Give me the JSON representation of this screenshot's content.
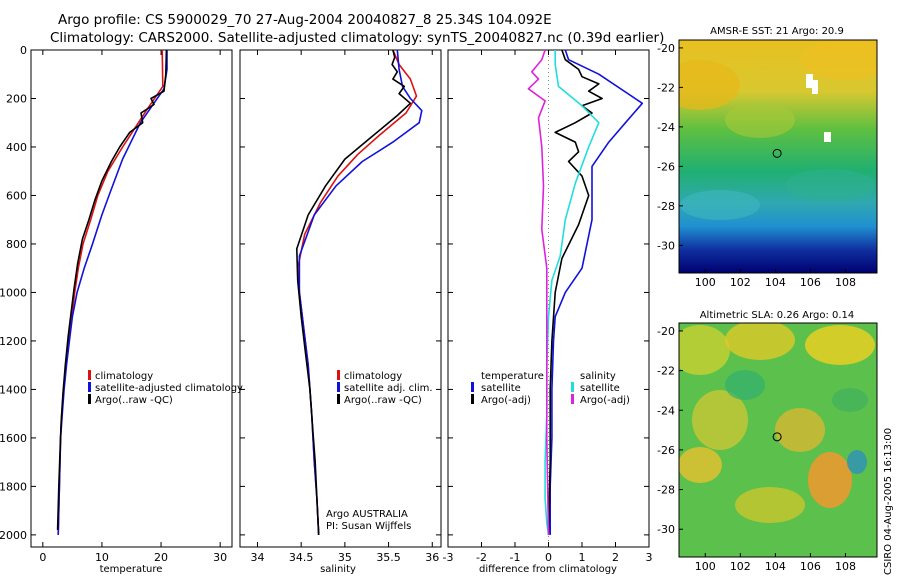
{
  "header": {
    "title_line1": "Argo profile: CS 5900029_70 27-Aug-2004 20040827_8 25.34S 104.092E",
    "title_line2": "Climatology: CARS2000. Satellite-adjusted climatology: synTS_20040827.nc (0.39d earlier)"
  },
  "credit": "CSIRO 04-Aug-2005 16:13:00",
  "colors": {
    "climatology": "#dd1111",
    "satellite": "#1111dd",
    "argo": "#000000",
    "sat_salinity": "#22dddd",
    "argo_salinity": "#dd22dd",
    "zero_line": "#888888"
  },
  "chart_data": [
    {
      "type": "line",
      "xlabel": "temperature",
      "ylabel": "",
      "xlim": [
        -2,
        32
      ],
      "ylim": [
        2050,
        0
      ],
      "xticks": [
        "0",
        "10",
        "20",
        "30"
      ],
      "yticks": [
        "0",
        "200",
        "400",
        "600",
        "800",
        "1000",
        "1200",
        "1400",
        "1600",
        "1800",
        "2000"
      ],
      "legend": {
        "placement": "lower-right",
        "entries": [
          "climatology",
          "satellite-adjusted climatology",
          "Argo(..raw -QC)"
        ]
      },
      "series": [
        {
          "name": "climatology",
          "color": "#dd1111",
          "x": [
            20.2,
            20.3,
            17.5,
            13.5,
            11.0,
            9.3,
            8.1,
            6.8,
            6.0,
            5.4,
            4.9,
            4.4,
            3.9,
            3.5,
            3.2,
            3.0,
            2.8,
            2.6
          ],
          "y": [
            0,
            150,
            250,
            400,
            500,
            600,
            700,
            800,
            900,
            1000,
            1100,
            1200,
            1300,
            1400,
            1500,
            1600,
            1800,
            2000
          ]
        },
        {
          "name": "satellite-adjusted climatology",
          "color": "#1111dd",
          "x": [
            21.0,
            21.0,
            20.5,
            16.5,
            13.5,
            11.5,
            10.0,
            8.4,
            7.0,
            5.8,
            5.0,
            4.5,
            4.0,
            3.6,
            3.3,
            3.0,
            2.8,
            2.6
          ],
          "y": [
            0,
            80,
            160,
            300,
            450,
            580,
            680,
            800,
            900,
            1000,
            1100,
            1200,
            1300,
            1400,
            1500,
            1600,
            1800,
            2000
          ]
        },
        {
          "name": "Argo(..raw -QC)",
          "color": "#000000",
          "x": [
            20.9,
            20.8,
            20.5,
            18.3,
            18.8,
            16.6,
            16.9,
            14.7,
            13.0,
            11.6,
            10.0,
            8.8,
            7.8,
            6.7,
            5.9,
            5.3,
            4.8,
            4.3,
            3.8,
            3.4,
            3.1,
            2.9,
            2.7,
            2.5
          ],
          "y": [
            0,
            100,
            170,
            200,
            225,
            260,
            300,
            340,
            400,
            460,
            540,
            620,
            700,
            780,
            880,
            980,
            1080,
            1180,
            1300,
            1420,
            1540,
            1660,
            1800,
            1980
          ]
        }
      ]
    },
    {
      "type": "line",
      "xlabel": "salinity",
      "ylabel": "",
      "xlim": [
        33.8,
        36.1
      ],
      "ylim": [
        2050,
        0
      ],
      "xticks": [
        "34",
        "34.5",
        "35",
        "35.5",
        "36"
      ],
      "annotations": [
        "Argo AUSTRALIA",
        "PI: Susan Wijffels"
      ],
      "legend": {
        "placement": "lower-right",
        "entries": [
          "climatology",
          "satellite adj. clim.",
          "Argo(..raw -QC)"
        ]
      },
      "series": [
        {
          "name": "climatology",
          "color": "#dd1111",
          "x": [
            35.55,
            35.62,
            35.75,
            35.82,
            35.7,
            35.4,
            35.15,
            34.92,
            34.72,
            34.54,
            34.46,
            34.48,
            34.53,
            34.58,
            34.62,
            34.65,
            34.68,
            34.7
          ],
          "y": [
            0,
            60,
            120,
            190,
            260,
            350,
            430,
            520,
            630,
            760,
            900,
            1000,
            1150,
            1300,
            1500,
            1700,
            1850,
            2000
          ]
        },
        {
          "name": "satellite adj. clim.",
          "color": "#1111dd",
          "x": [
            35.6,
            35.62,
            35.66,
            35.75,
            35.88,
            35.85,
            35.55,
            35.2,
            34.9,
            34.65,
            34.48,
            34.48,
            34.53,
            34.58,
            34.62,
            34.65,
            34.68,
            34.7
          ],
          "y": [
            0,
            80,
            150,
            200,
            250,
            300,
            380,
            460,
            560,
            680,
            850,
            1000,
            1150,
            1300,
            1500,
            1700,
            1850,
            2000
          ]
        },
        {
          "name": "Argo(..raw -QC)",
          "color": "#000000",
          "x": [
            35.55,
            35.57,
            35.54,
            35.6,
            35.55,
            35.68,
            35.62,
            35.75,
            35.6,
            35.3,
            35.0,
            34.78,
            34.58,
            34.45,
            34.46,
            34.5,
            34.55,
            34.6,
            34.63,
            34.66,
            34.68,
            34.7
          ],
          "y": [
            0,
            30,
            60,
            90,
            120,
            150,
            180,
            220,
            270,
            360,
            450,
            560,
            680,
            820,
            950,
            1100,
            1250,
            1400,
            1550,
            1700,
            1850,
            2000
          ]
        }
      ]
    },
    {
      "type": "line",
      "xlabel": "difference from climatology",
      "ylabel": "",
      "xlim": [
        -3,
        3
      ],
      "ylim": [
        2050,
        0
      ],
      "xticks": [
        "-3",
        "-2",
        "-1",
        "0",
        "1",
        "2",
        "3"
      ],
      "legend": {
        "placement": "lower-center",
        "groups": [
          {
            "header": "temperature",
            "entries": [
              "satellite",
              "Argo(-adj)"
            ]
          },
          {
            "header": "salinity",
            "entries": [
              "satellite",
              "Argo(-adj)"
            ]
          }
        ]
      },
      "series": [
        {
          "name": "temperature satellite",
          "color": "#1111dd",
          "x": [
            0.5,
            0.6,
            1.5,
            2.8,
            2.3,
            1.8,
            1.3,
            1.3,
            1.3,
            1.0,
            0.5,
            0.2,
            0.15,
            0.1,
            0.1,
            0.05,
            0.05
          ],
          "y": [
            0,
            40,
            100,
            220,
            300,
            380,
            480,
            600,
            700,
            900,
            1000,
            1100,
            1200,
            1400,
            1600,
            1800,
            2000
          ]
        },
        {
          "name": "temperature Argo(-adj)",
          "color": "#000000",
          "x": [
            0.4,
            0.5,
            0.9,
            1.0,
            1.5,
            1.2,
            1.6,
            1.0,
            1.3,
            0.8,
            0.2,
            0.8,
            0.9,
            0.6,
            1.0,
            1.2,
            0.9,
            0.4,
            0.2,
            0.1,
            0.05,
            0.05,
            0.0
          ],
          "y": [
            0,
            40,
            80,
            110,
            140,
            170,
            200,
            230,
            260,
            300,
            340,
            380,
            420,
            460,
            520,
            600,
            720,
            860,
            1000,
            1200,
            1400,
            1700,
            2000
          ]
        },
        {
          "name": "salinity satellite",
          "color": "#22dddd",
          "x": [
            0.2,
            0.2,
            0.3,
            1.0,
            1.5,
            1.2,
            0.8,
            0.5,
            0.35,
            0.1,
            0.0,
            -0.05,
            -0.05,
            -0.1,
            -0.1,
            -0.05,
            0.0
          ],
          "y": [
            0,
            60,
            150,
            230,
            300,
            400,
            550,
            700,
            850,
            950,
            1100,
            1300,
            1500,
            1700,
            1850,
            1950,
            2000
          ]
        },
        {
          "name": "salinity Argo(-adj)",
          "color": "#dd22dd",
          "x": [
            -0.1,
            -0.2,
            -0.5,
            -0.3,
            -0.6,
            -0.1,
            -0.3,
            -0.2,
            -0.15,
            -0.2,
            -0.05,
            -0.05,
            -0.05,
            0.0
          ],
          "y": [
            0,
            40,
            90,
            120,
            160,
            210,
            280,
            400,
            560,
            740,
            900,
            1200,
            1600,
            2000
          ]
        }
      ]
    },
    {
      "type": "heatmap",
      "title": "AMSR-E SST: 21 Argo: 20.9",
      "xticks": [
        "100",
        "102",
        "104",
        "106",
        "108"
      ],
      "yticks": [
        "-20",
        "-22",
        "-24",
        "-26",
        "-28",
        "-30"
      ],
      "marker": {
        "lon": 104.1,
        "lat": -25.34
      }
    },
    {
      "type": "heatmap",
      "title": "Altimetric SLA: 0.26 Argo: 0.14",
      "xticks": [
        "100",
        "102",
        "104",
        "106",
        "108"
      ],
      "yticks": [
        "-20",
        "-22",
        "-24",
        "-26",
        "-28",
        "-30"
      ],
      "marker": {
        "lon": 104.1,
        "lat": -25.34
      }
    }
  ]
}
